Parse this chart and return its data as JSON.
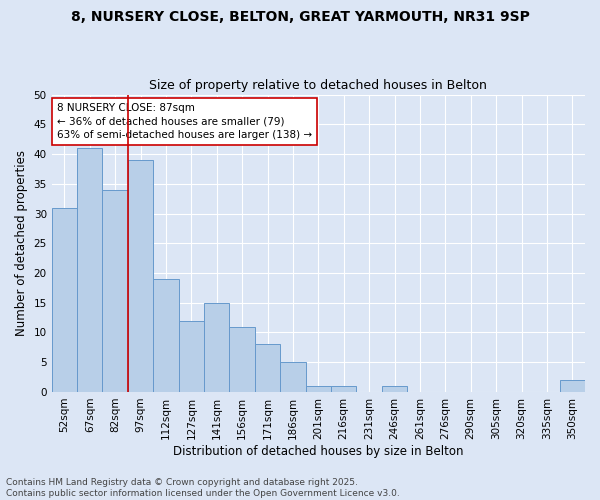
{
  "title_line1": "8, NURSERY CLOSE, BELTON, GREAT YARMOUTH, NR31 9SP",
  "title_line2": "Size of property relative to detached houses in Belton",
  "xlabel": "Distribution of detached houses by size in Belton",
  "ylabel": "Number of detached properties",
  "bar_labels": [
    "52sqm",
    "67sqm",
    "82sqm",
    "97sqm",
    "112sqm",
    "127sqm",
    "141sqm",
    "156sqm",
    "171sqm",
    "186sqm",
    "201sqm",
    "216sqm",
    "231sqm",
    "246sqm",
    "261sqm",
    "276sqm",
    "290sqm",
    "305sqm",
    "320sqm",
    "335sqm",
    "350sqm"
  ],
  "bar_values": [
    31,
    41,
    34,
    39,
    19,
    12,
    15,
    11,
    8,
    5,
    1,
    1,
    0,
    1,
    0,
    0,
    0,
    0,
    0,
    0,
    2
  ],
  "bar_color": "#b8cfe8",
  "bar_edge_color": "#6699cc",
  "background_color": "#dce6f5",
  "grid_color": "#ffffff",
  "annotation_text": "8 NURSERY CLOSE: 87sqm\n← 36% of detached houses are smaller (79)\n63% of semi-detached houses are larger (138) →",
  "vline_color": "#cc0000",
  "annotation_box_color": "#ffffff",
  "annotation_box_edge": "#cc0000",
  "ylim": [
    0,
    50
  ],
  "yticks": [
    0,
    5,
    10,
    15,
    20,
    25,
    30,
    35,
    40,
    45,
    50
  ],
  "footer_text": "Contains HM Land Registry data © Crown copyright and database right 2025.\nContains public sector information licensed under the Open Government Licence v3.0.",
  "title_fontsize": 10,
  "subtitle_fontsize": 9,
  "axis_label_fontsize": 8.5,
  "tick_fontsize": 7.5,
  "annotation_fontsize": 7.5,
  "footer_fontsize": 6.5
}
